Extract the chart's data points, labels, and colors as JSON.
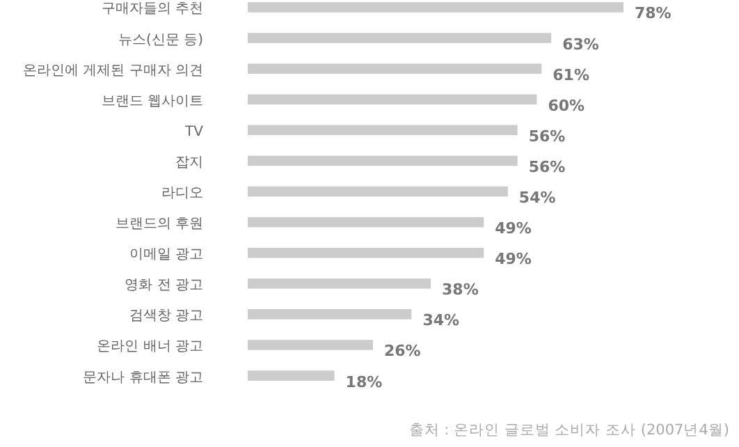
{
  "chart_data": {
    "type": "bar",
    "orientation": "horizontal",
    "data_labels": true,
    "categories": [
      "구매자들의 추천",
      "뉴스(신문 등)",
      "온라인에 게제된 구매자 의견",
      "브랜드 웹사이트",
      "TV",
      "잡지",
      "라디오",
      "브랜드의 후원",
      "이메일 광고",
      "영화 전 광고",
      "검색창 광고",
      "온라인 배너 광고",
      "문자나 휴대폰 광고"
    ],
    "values": [
      78,
      63,
      61,
      60,
      56,
      56,
      54,
      49,
      49,
      38,
      34,
      26,
      18
    ],
    "value_labels": [
      "78%",
      "63%",
      "61%",
      "60%",
      "56%",
      "56%",
      "54%",
      "49%",
      "49%",
      "38%",
      "34%",
      "26%",
      "18%"
    ],
    "color": "#cccccc",
    "annotations": [
      "출처 : 온라인 글로벌 소비자 조사 (2007년4월)"
    ]
  }
}
